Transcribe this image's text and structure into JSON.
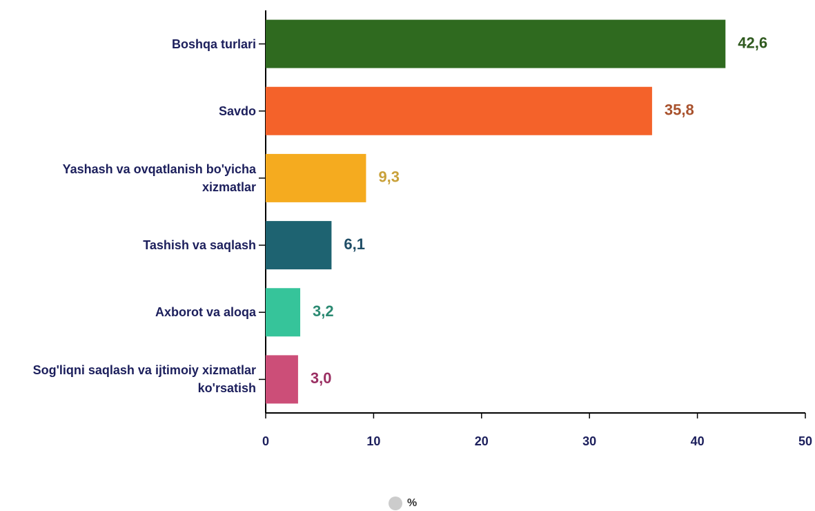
{
  "chart_data": {
    "type": "bar",
    "orientation": "horizontal",
    "categories": [
      "Boshqa turlari",
      "Savdo",
      "Yashash va ovqatlanish bo'yicha xizmatlar",
      "Tashish va saqlash",
      "Axborot va aloqa",
      "Sog'liqni saqlash va ijtimoiy xizmatlar ko'rsatish"
    ],
    "series": [
      {
        "name": "%",
        "color": "#cccccc",
        "values": [
          42.6,
          35.8,
          9.3,
          6.1,
          3.2,
          3.0
        ],
        "value_labels": [
          "42,6",
          "35,8",
          "9,3",
          "6,1",
          "3,2",
          "3,0"
        ],
        "colors": [
          "#2f6a1f",
          "#f4622a",
          "#f5ab1f",
          "#1e6371",
          "#36c49a",
          "#cc4e78"
        ],
        "label_colors": [
          "#2f5a1f",
          "#a8512c",
          "#c9a13a",
          "#1f4d66",
          "#2b8a72",
          "#9a2f62"
        ]
      }
    ],
    "xlim": [
      0,
      50
    ],
    "xticks": [
      0,
      10,
      20,
      30,
      40,
      50
    ],
    "legend": "bottom"
  }
}
